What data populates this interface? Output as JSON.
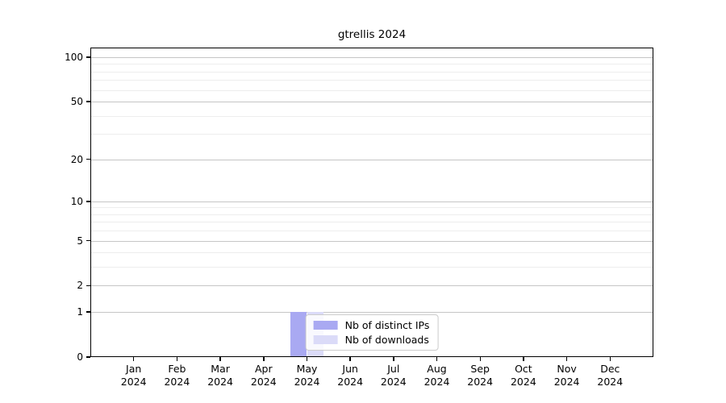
{
  "figure": {
    "background": "#ffffff"
  },
  "chart_data": {
    "type": "bar",
    "title": "gtrellis 2024",
    "categories": [
      "Jan",
      "Feb",
      "Mar",
      "Apr",
      "May",
      "Jun",
      "Jul",
      "Aug",
      "Sep",
      "Oct",
      "Nov",
      "Dec"
    ],
    "x_year_label": "2024",
    "series": [
      {
        "name": "Nb of distinct IPs",
        "color": "#a9a9f2",
        "values": [
          0,
          0,
          0,
          0,
          1,
          0,
          0,
          0,
          0,
          0,
          0,
          0
        ]
      },
      {
        "name": "Nb of downloads",
        "color": "#dbdbf8",
        "values": [
          0,
          0,
          0,
          0,
          1,
          0,
          0,
          0,
          0,
          0,
          0,
          0
        ]
      }
    ],
    "yscale": "log1p",
    "y_ticks": [
      0,
      1,
      2,
      5,
      10,
      20,
      50,
      100
    ],
    "y_minor_gridlines": [
      3,
      4,
      6,
      7,
      8,
      9,
      30,
      40,
      60,
      70,
      80,
      90
    ],
    "ylim": [
      0,
      116
    ],
    "grid": "horizontal-major-and-minor",
    "legend_position": "lower center",
    "colors": {
      "spine": "#000000",
      "grid_major": "#c6c6c6",
      "grid_minor": "#ededed",
      "text": "#000000"
    }
  }
}
